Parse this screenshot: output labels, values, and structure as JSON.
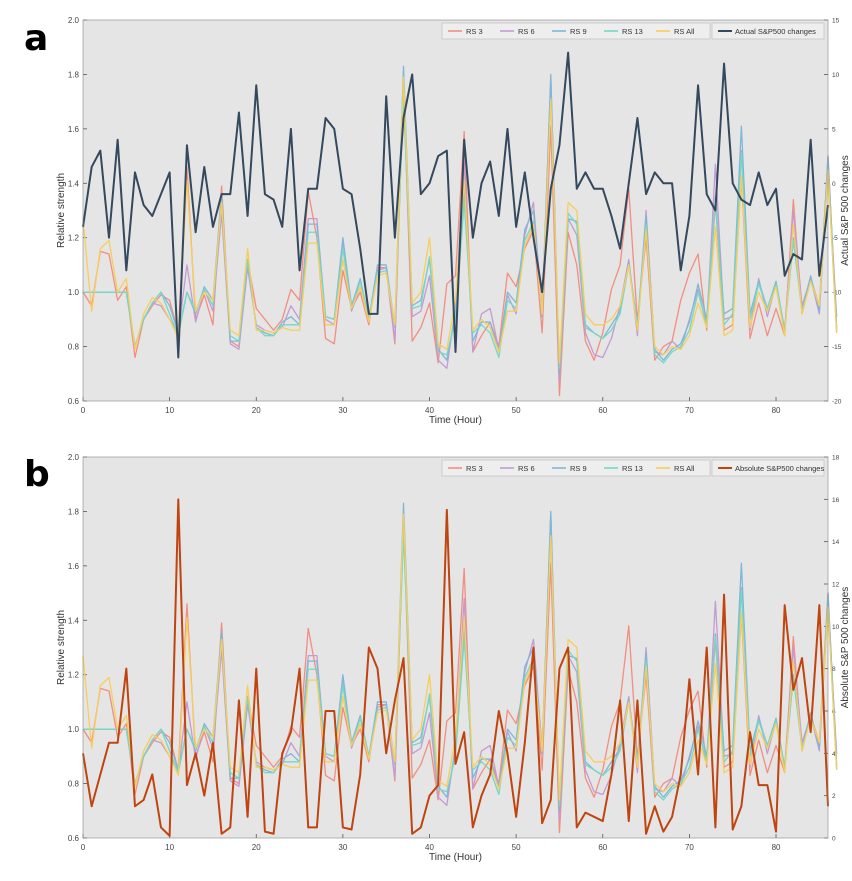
{
  "panels": [
    {
      "letter": "a"
    },
    {
      "letter": "b"
    }
  ],
  "chart_data": [
    {
      "type": "line",
      "title": "",
      "xlabel": "Time (Hour)",
      "ylabel": "Relative strength",
      "y2label": "Actual S&P 500 changes",
      "xlim": [
        0,
        86
      ],
      "ylim": [
        0.6,
        2.0
      ],
      "y2lim": [
        -20,
        15
      ],
      "x_ticks": [
        0,
        10,
        20,
        30,
        40,
        50,
        60,
        70,
        80
      ],
      "y_ticks": [
        0.6,
        0.8,
        1.0,
        1.2,
        1.4,
        1.6,
        1.8,
        2.0
      ],
      "y2_ticks": [
        -20,
        -15,
        -10,
        -5,
        0,
        5,
        10,
        15
      ],
      "grid": false,
      "legend_position": "top-right",
      "series": [
        {
          "name": "RS 3",
          "color": "#f28e7f",
          "axis": "left",
          "values": [
            1.0,
            0.95,
            1.15,
            1.14,
            0.97,
            1.02,
            0.76,
            0.9,
            0.95,
            0.99,
            0.97,
            0.85,
            1.46,
            0.9,
            0.99,
            0.88,
            1.39,
            0.82,
            0.8,
            1.12,
            0.94,
            0.9,
            0.86,
            0.9,
            1.01,
            0.97,
            1.37,
            1.2,
            0.83,
            0.81,
            1.08,
            0.94,
            1.0,
            0.88,
            1.09,
            1.09,
            0.81,
            1.76,
            0.82,
            0.87,
            0.96,
            0.74,
            1.03,
            1.06,
            1.59,
            0.78,
            0.84,
            0.89,
            0.8,
            1.07,
            1.02,
            1.16,
            1.23,
            0.85,
            1.61,
            0.62,
            1.22,
            1.1,
            0.82,
            0.75,
            0.85,
            1.01,
            1.1,
            1.38,
            0.89,
            1.2,
            0.75,
            0.8,
            0.82,
            0.97,
            1.07,
            1.14,
            0.86,
            1.33,
            0.86,
            0.88,
            1.42,
            0.83,
            0.96,
            0.84,
            0.94,
            0.84,
            1.34,
            0.92,
            1.05,
            0.95,
            1.5,
            0.86
          ]
        },
        {
          "name": "RS 6",
          "color": "#c39bd3",
          "axis": "left",
          "values": [
            1.0,
            1.0,
            1.0,
            1.0,
            1.0,
            1.0,
            0.8,
            0.9,
            0.96,
            0.95,
            0.9,
            0.85,
            1.1,
            0.89,
            1.01,
            0.93,
            1.29,
            0.81,
            0.79,
            1.09,
            0.88,
            0.86,
            0.85,
            0.87,
            0.95,
            0.9,
            1.27,
            1.27,
            0.9,
            0.88,
            1.19,
            0.93,
            1.02,
            0.9,
            1.08,
            1.09,
            0.82,
            1.79,
            0.91,
            0.93,
            1.06,
            0.75,
            0.72,
            0.94,
            1.48,
            0.78,
            0.92,
            0.94,
            0.79,
            0.99,
            0.92,
            1.21,
            1.33,
            0.93,
            1.79,
            0.67,
            1.27,
            1.21,
            0.85,
            0.77,
            0.76,
            0.83,
            0.95,
            1.12,
            0.84,
            1.3,
            0.78,
            0.77,
            0.82,
            0.79,
            0.9,
            1.01,
            0.87,
            1.47,
            0.9,
            0.91,
            1.52,
            0.86,
            1.05,
            0.91,
            1.03,
            0.86,
            1.3,
            0.95,
            1.05,
            0.92,
            1.46,
            0.91
          ]
        },
        {
          "name": "RS 9",
          "color": "#7fb7d9",
          "axis": "left",
          "values": [
            1.0,
            1.0,
            1.0,
            1.0,
            1.0,
            1.0,
            0.8,
            0.9,
            0.96,
            1.0,
            0.95,
            0.85,
            1.0,
            0.92,
            1.02,
            0.97,
            1.36,
            0.82,
            0.82,
            1.12,
            0.87,
            0.85,
            0.84,
            0.89,
            0.91,
            0.88,
            1.25,
            1.25,
            0.91,
            0.9,
            1.2,
            0.95,
            1.05,
            0.9,
            1.1,
            1.1,
            0.87,
            1.83,
            0.95,
            0.97,
            1.12,
            0.79,
            0.75,
            0.92,
            1.37,
            0.82,
            0.89,
            0.89,
            0.78,
            1.0,
            0.96,
            1.23,
            1.3,
            0.91,
            1.8,
            0.7,
            1.27,
            1.26,
            0.88,
            0.85,
            0.83,
            0.88,
            0.93,
            1.11,
            0.88,
            1.28,
            0.79,
            0.75,
            0.79,
            0.81,
            0.89,
            1.03,
            0.9,
            1.35,
            0.92,
            0.94,
            1.61,
            0.92,
            1.04,
            0.94,
            1.04,
            0.86,
            1.2,
            0.93,
            1.06,
            0.93,
            1.5,
            0.87
          ]
        },
        {
          "name": "RS 13",
          "color": "#76d7c4",
          "axis": "left",
          "values": [
            1.0,
            1.0,
            1.0,
            1.0,
            1.0,
            1.0,
            0.8,
            0.9,
            0.96,
            1.0,
            0.92,
            0.84,
            1.0,
            0.93,
            1.01,
            0.95,
            1.33,
            0.84,
            0.82,
            1.12,
            0.87,
            0.84,
            0.84,
            0.88,
            0.88,
            0.88,
            1.22,
            1.22,
            0.91,
            0.9,
            1.16,
            0.94,
            1.04,
            0.9,
            1.07,
            1.08,
            0.88,
            1.71,
            0.94,
            0.95,
            1.13,
            0.78,
            0.77,
            0.9,
            1.33,
            0.85,
            0.88,
            0.85,
            0.76,
            0.97,
            0.94,
            1.19,
            1.26,
            0.92,
            1.71,
            0.72,
            1.29,
            1.25,
            0.87,
            0.85,
            0.83,
            0.86,
            0.92,
            1.1,
            0.87,
            1.25,
            0.77,
            0.74,
            0.78,
            0.8,
            0.86,
            1.0,
            0.88,
            1.34,
            0.88,
            0.92,
            1.51,
            0.9,
            1.03,
            0.94,
            1.03,
            0.86,
            1.19,
            0.93,
            1.04,
            0.95,
            1.45,
            0.85
          ]
        },
        {
          "name": "RS All",
          "color": "#f7ce5b",
          "axis": "left",
          "values": [
            1.27,
            0.93,
            1.16,
            1.19,
            1.0,
            1.05,
            0.79,
            0.92,
            0.98,
            0.96,
            0.9,
            0.83,
            1.41,
            0.93,
            1.0,
            0.97,
            1.33,
            0.86,
            0.84,
            1.16,
            0.86,
            0.86,
            0.85,
            0.87,
            0.86,
            0.86,
            1.18,
            1.18,
            0.88,
            0.88,
            1.12,
            0.94,
            1.02,
            0.89,
            1.06,
            1.07,
            0.88,
            1.79,
            0.96,
            1.0,
            1.2,
            0.81,
            0.79,
            0.97,
            1.41,
            0.86,
            0.9,
            0.87,
            0.78,
            0.93,
            0.93,
            1.17,
            1.25,
            0.92,
            1.71,
            0.74,
            1.33,
            1.3,
            0.92,
            0.88,
            0.88,
            0.9,
            0.95,
            1.1,
            0.86,
            1.23,
            0.8,
            0.77,
            0.8,
            0.79,
            0.84,
            0.96,
            0.87,
            1.24,
            0.84,
            0.86,
            1.43,
            0.87,
            1.0,
            0.93,
            1.02,
            0.84,
            1.25,
            0.92,
            1.04,
            0.95,
            1.45,
            0.85
          ]
        },
        {
          "name": "Actual S&P500 changes",
          "color": "#34495e",
          "axis": "right",
          "values": [
            -4,
            1.5,
            3,
            -5,
            4,
            -8,
            1,
            -2,
            -3,
            -1,
            1,
            -16,
            3.5,
            -4.5,
            1.5,
            -4,
            -1,
            -1,
            6.5,
            -3,
            9,
            -1,
            -1.5,
            -4,
            5,
            -8,
            -0.5,
            -0.5,
            6,
            5,
            -0.5,
            -1,
            -6,
            -12,
            -12,
            8,
            -5,
            6,
            10,
            -1,
            0,
            2.5,
            3,
            -15.5,
            4,
            -5,
            0,
            2,
            -3,
            5,
            -4,
            1,
            -5,
            -10,
            -0.5,
            3.5,
            12,
            -0.5,
            1,
            -0.5,
            -0.5,
            -3,
            -6,
            0,
            6,
            -1,
            1,
            0,
            0,
            -8,
            -3,
            9,
            -1,
            -2.5,
            11,
            0,
            -1.5,
            -2,
            1,
            -2,
            -0.5,
            -8.5,
            -6.5,
            -7,
            4,
            -8.5,
            -2
          ]
        }
      ]
    },
    {
      "type": "line",
      "title": "",
      "xlabel": "Time (Hour)",
      "ylabel": "Relative strength",
      "y2label": "Absolute S&P 500 changes",
      "xlim": [
        0,
        86
      ],
      "ylim": [
        0.6,
        2.0
      ],
      "y2lim": [
        0,
        18
      ],
      "x_ticks": [
        0,
        10,
        20,
        30,
        40,
        50,
        60,
        70,
        80
      ],
      "y_ticks": [
        0.6,
        0.8,
        1.0,
        1.2,
        1.4,
        1.6,
        1.8,
        2.0
      ],
      "y2_ticks": [
        0,
        2,
        4,
        6,
        8,
        10,
        12,
        14,
        16,
        18
      ],
      "grid": false,
      "legend_position": "top-right",
      "series": [
        {
          "name": "RS 3",
          "color": "#f28e7f",
          "axis": "left",
          "same_as": 0
        },
        {
          "name": "RS 6",
          "color": "#c39bd3",
          "axis": "left",
          "same_as": 1
        },
        {
          "name": "RS 9",
          "color": "#7fb7d9",
          "axis": "left",
          "same_as": 2
        },
        {
          "name": "RS 13",
          "color": "#76d7c4",
          "axis": "left",
          "same_as": 3
        },
        {
          "name": "RS All",
          "color": "#f7ce5b",
          "axis": "left",
          "same_as": 4
        },
        {
          "name": "Absolute S&P500 changes",
          "color": "#c0440f",
          "axis": "right",
          "values": [
            4,
            1.5,
            3,
            4.5,
            4.5,
            8,
            1.5,
            1.8,
            3,
            0.5,
            0.1,
            16,
            2.5,
            4,
            2,
            4.5,
            0.2,
            0.5,
            6.5,
            1,
            8,
            0.3,
            0.2,
            4,
            5,
            8,
            0.5,
            0.5,
            6,
            6,
            0.5,
            0.4,
            3,
            9,
            8,
            4,
            6.5,
            8.5,
            0.2,
            0.5,
            2,
            2.5,
            15.5,
            3.5,
            5,
            0.5,
            2,
            3,
            6,
            4,
            1,
            4.5,
            9,
            0.7,
            1.8,
            8,
            9,
            0.5,
            1.2,
            1,
            0.8,
            3,
            6.5,
            0.8,
            6.5,
            0.2,
            1.5,
            0.3,
            1,
            3,
            7.5,
            3,
            9,
            0.5,
            11.5,
            0.4,
            1.5,
            5,
            2.5,
            2.5,
            0.3,
            11,
            7,
            8.5,
            5,
            11,
            1.5
          ]
        }
      ]
    }
  ]
}
